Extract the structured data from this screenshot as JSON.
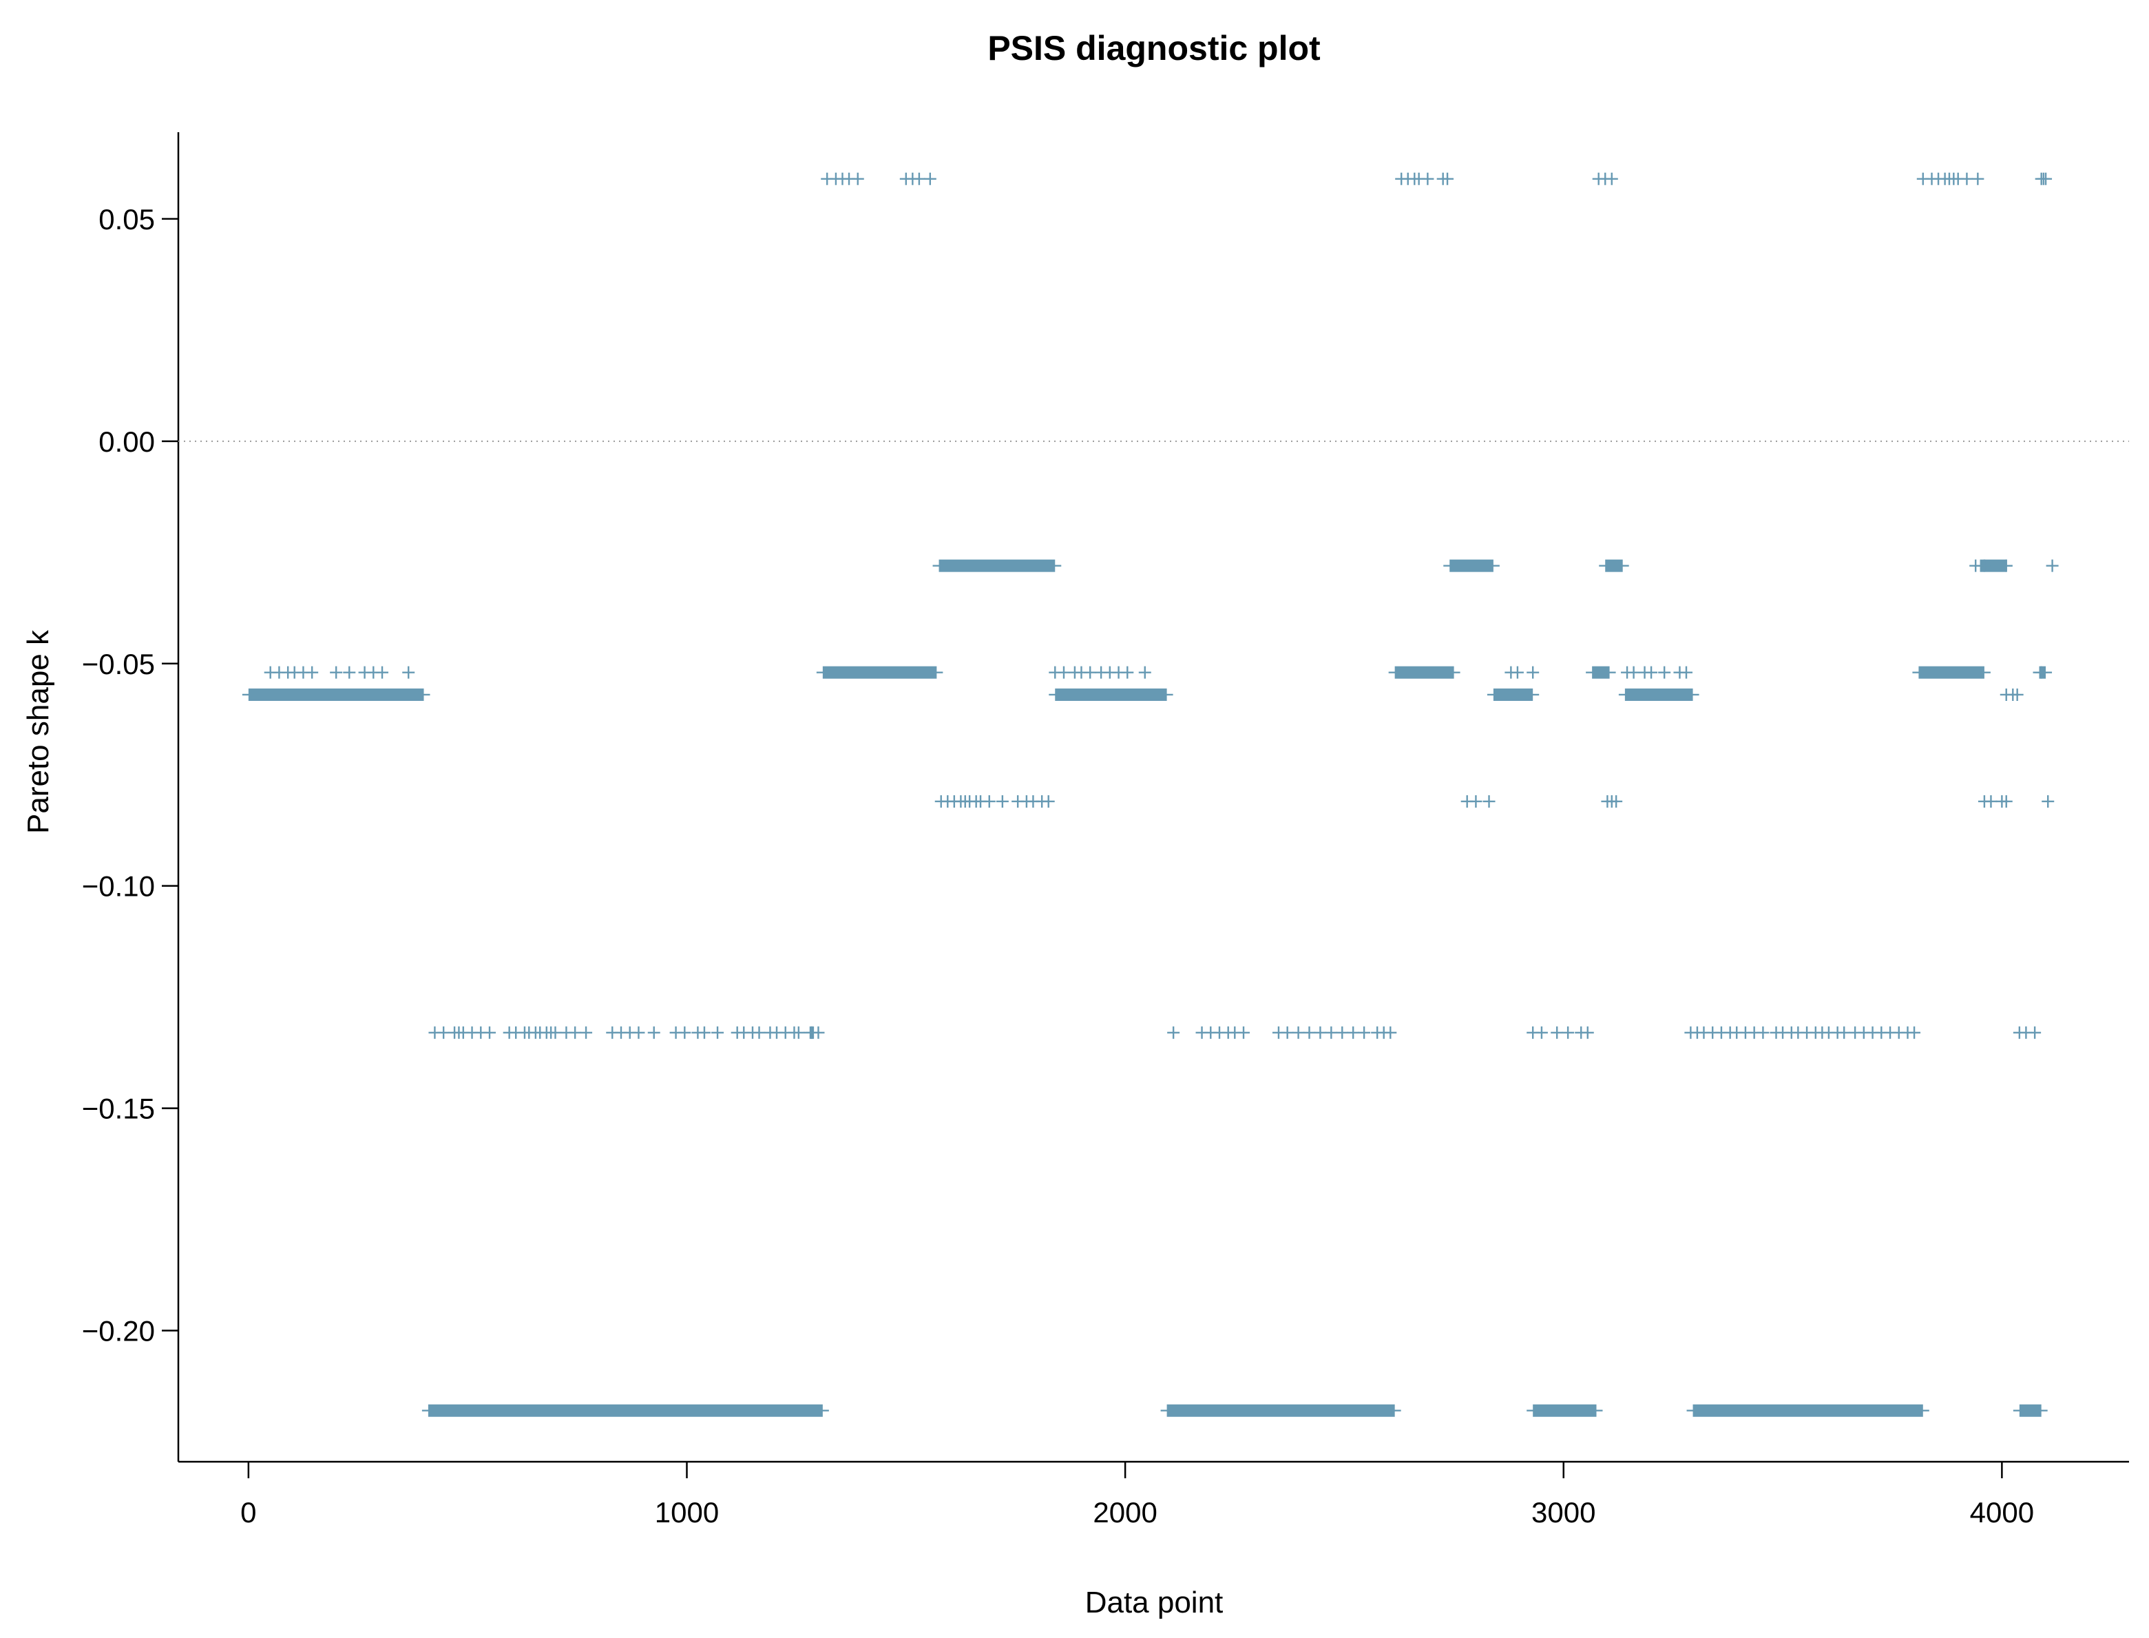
{
  "chart_data": {
    "type": "scatter",
    "title": "PSIS diagnostic plot",
    "xlabel": "Data point",
    "ylabel": "Pareto shape k",
    "xlim": [
      -160,
      4290
    ],
    "ylim": [
      -0.2295,
      0.0695
    ],
    "xticks": [
      0,
      1000,
      2000,
      3000,
      4000
    ],
    "xtick_labels": [
      "0",
      "1000",
      "2000",
      "3000",
      "4000"
    ],
    "yticks": [
      0.05,
      0.0,
      -0.05,
      -0.1,
      -0.15,
      -0.2
    ],
    "ytick_labels": [
      "0.05",
      "0.00",
      "−0.05",
      "−0.10",
      "−0.15",
      "−0.20"
    ],
    "reference_line": {
      "y": 0.0,
      "style": "dotted",
      "color": "#9a9a9a"
    },
    "marker": "plus",
    "marker_color": "#6699b3",
    "grid": false,
    "legend": "none",
    "levels": [
      0.059,
      -0.028,
      -0.052,
      -0.057,
      -0.081,
      -0.133,
      -0.218
    ],
    "points": [
      {
        "k": 0.059,
        "x": [
          1320,
          1340,
          1355,
          1370,
          1390,
          1500,
          1515,
          1530,
          1555,
          2630,
          2645,
          2660,
          2670,
          2690,
          2725,
          2735,
          3080,
          3095,
          3110,
          3820,
          3840,
          3855,
          3870,
          3880,
          3890,
          3900,
          3920,
          3945,
          4090,
          4095,
          4100
        ]
      },
      {
        "k": -0.028,
        "x": [
          3940,
          3960,
          4010,
          4115
        ]
      },
      {
        "k": -0.052,
        "x": [
          50,
          70,
          90,
          105,
          125,
          145,
          200,
          230,
          265,
          285,
          305,
          365,
          1840,
          1860,
          1885,
          1900,
          1920,
          1945,
          1965,
          1985,
          2005,
          2045,
          2880,
          2895,
          2930,
          3145,
          3160,
          3185,
          3200,
          3230,
          3265,
          3280,
          4090
        ]
      },
      {
        "k": -0.057,
        "x": [
          4010,
          4025,
          4035
        ]
      },
      {
        "k": -0.081,
        "x": [
          1580,
          1595,
          1610,
          1625,
          1635,
          1645,
          1660,
          1670,
          1690,
          1720,
          1755,
          1775,
          1790,
          1810,
          1825,
          2780,
          2800,
          2830,
          3100,
          3110,
          3120,
          3960,
          3975,
          4000,
          4010,
          4105
        ]
      },
      {
        "k": -0.133,
        "x": [
          425,
          445,
          470,
          480,
          490,
          510,
          530,
          550,
          595,
          610,
          630,
          640,
          655,
          665,
          680,
          690,
          700,
          725,
          745,
          770,
          830,
          850,
          870,
          890,
          925,
          975,
          995,
          1025,
          1040,
          1070,
          1115,
          1130,
          1150,
          1165,
          1190,
          1205,
          1225,
          1245,
          1255,
          1285,
          1300,
          2110,
          2175,
          2195,
          2215,
          2235,
          2250,
          2270,
          2350,
          2370,
          2395,
          2420,
          2445,
          2470,
          2495,
          2520,
          2545,
          2575,
          2590,
          2605,
          2930,
          2950,
          2985,
          3010,
          3040,
          3055,
          3290,
          3305,
          3320,
          3340,
          3360,
          3380,
          3395,
          3415,
          3435,
          3455,
          3485,
          3500,
          3520,
          3535,
          3555,
          3575,
          3590,
          3605,
          3625,
          3640,
          3665,
          3685,
          3705,
          3725,
          3745,
          3765,
          3785,
          3800,
          4040,
          4055,
          4075
        ]
      }
    ],
    "runs": [
      {
        "k": -0.028,
        "x_start": 1575,
        "x_end": 1840
      },
      {
        "k": -0.028,
        "x_start": 2740,
        "x_end": 2840
      },
      {
        "k": -0.028,
        "x_start": 3095,
        "x_end": 3135
      },
      {
        "k": -0.028,
        "x_start": 3950,
        "x_end": 4010
      },
      {
        "k": -0.052,
        "x_start": 1310,
        "x_end": 1570
      },
      {
        "k": -0.052,
        "x_start": 2615,
        "x_end": 2750
      },
      {
        "k": -0.052,
        "x_start": 3065,
        "x_end": 3105
      },
      {
        "k": -0.052,
        "x_start": 3810,
        "x_end": 3960
      },
      {
        "k": -0.052,
        "x_start": 4085,
        "x_end": 4100
      },
      {
        "k": -0.057,
        "x_start": 0,
        "x_end": 400
      },
      {
        "k": -0.057,
        "x_start": 1840,
        "x_end": 2095
      },
      {
        "k": -0.057,
        "x_start": 2840,
        "x_end": 2930
      },
      {
        "k": -0.057,
        "x_start": 3140,
        "x_end": 3295
      },
      {
        "k": -0.133,
        "x_start": 1280,
        "x_end": 1290
      },
      {
        "k": -0.218,
        "x_start": 410,
        "x_end": 1310
      },
      {
        "k": -0.218,
        "x_start": 2095,
        "x_end": 2615
      },
      {
        "k": -0.218,
        "x_start": 2930,
        "x_end": 3075
      },
      {
        "k": -0.218,
        "x_start": 3295,
        "x_end": 3820
      },
      {
        "k": -0.218,
        "x_start": 4040,
        "x_end": 4090
      }
    ]
  }
}
